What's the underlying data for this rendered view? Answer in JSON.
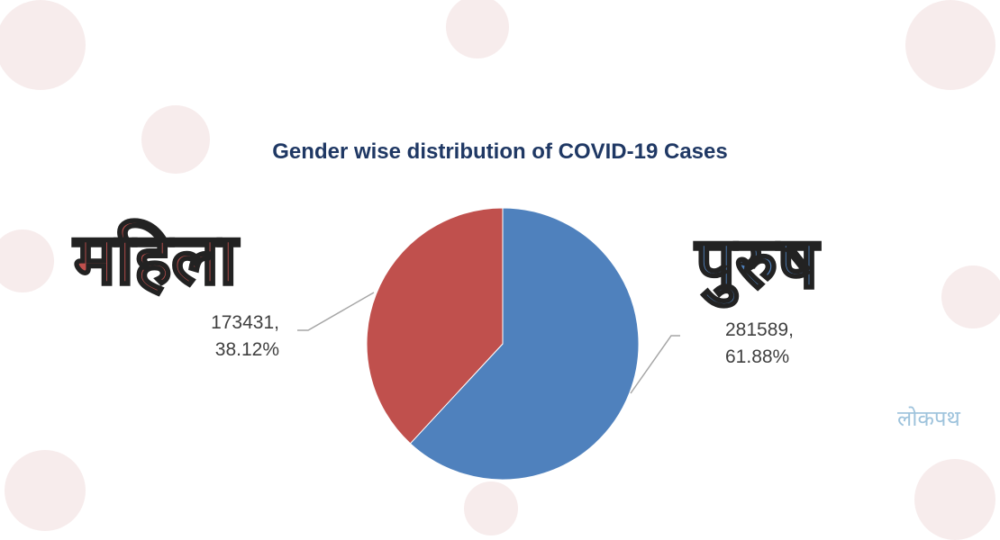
{
  "chart_data": {
    "type": "pie",
    "title": "Gender wise distribution of COVID-19 Cases",
    "categories": [
      "पुरुष",
      "महिला"
    ],
    "values": [
      281589,
      173431
    ],
    "value_labels": [
      "281589, 61.88%",
      "173431, 38.12%"
    ],
    "colors": [
      "#4f81bd",
      "#c0504d"
    ]
  },
  "watermark": "लोकपथ"
}
